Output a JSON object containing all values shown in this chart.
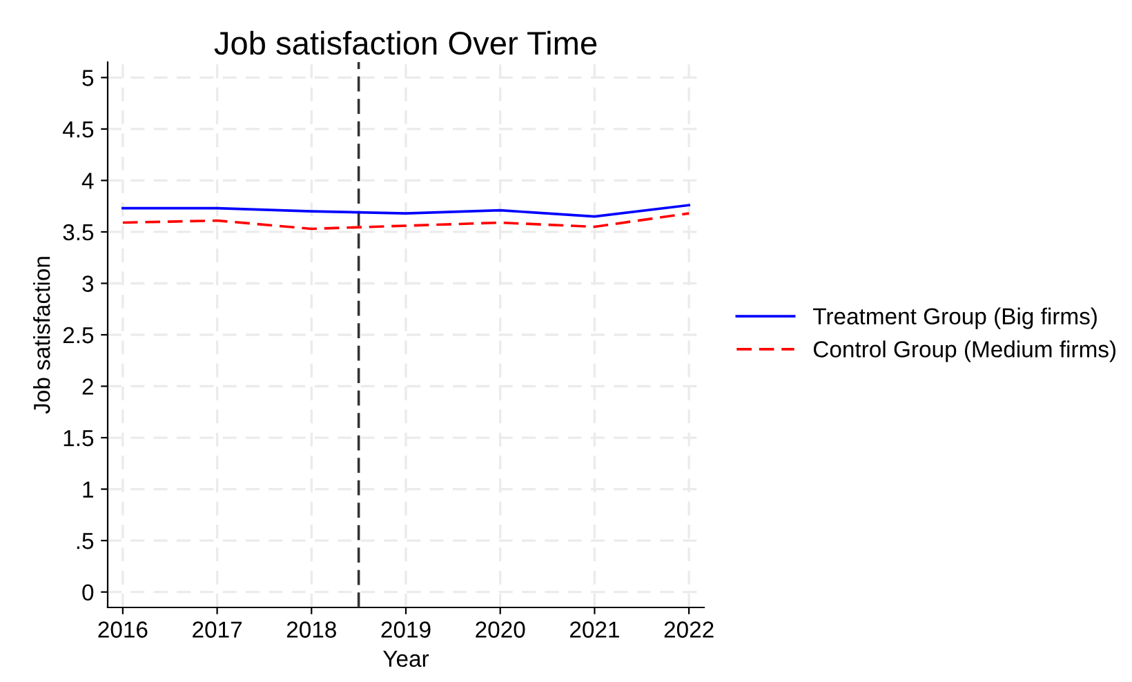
{
  "chart_data": {
    "type": "line",
    "title": "Job satisfaction Over Time",
    "xlabel": "Year",
    "ylabel": "Job satisfaction",
    "x": [
      2016,
      2017,
      2018,
      2019,
      2020,
      2021,
      2022
    ],
    "series": [
      {
        "name": "Treatment Group (Big firms)",
        "color": "#0000ff",
        "values": [
          3.73,
          3.73,
          3.7,
          3.68,
          3.71,
          3.65,
          3.76
        ],
        "line_style": "solid"
      },
      {
        "name": "Control Group (Medium firms)",
        "color": "#ff0000",
        "values": [
          3.59,
          3.61,
          3.53,
          3.56,
          3.59,
          3.55,
          3.68
        ],
        "line_style": "dashed"
      }
    ],
    "xlim": [
      2015.84,
      2022.16
    ],
    "xticks": [
      2016,
      2017,
      2018,
      2019,
      2020,
      2021,
      2022
    ],
    "ylim": [
      -0.15,
      5.15
    ],
    "yticks": [
      0,
      {
        "value": 0.5,
        "label": ".5"
      },
      1,
      1.5,
      2,
      2.5,
      3,
      3.5,
      4,
      4.5,
      5
    ],
    "ref_lines": [
      {
        "axis": "x",
        "value": 2018.5,
        "color": "#333333",
        "line_style": "dashed"
      }
    ],
    "grid": true,
    "legend": "right",
    "marker": "none"
  }
}
